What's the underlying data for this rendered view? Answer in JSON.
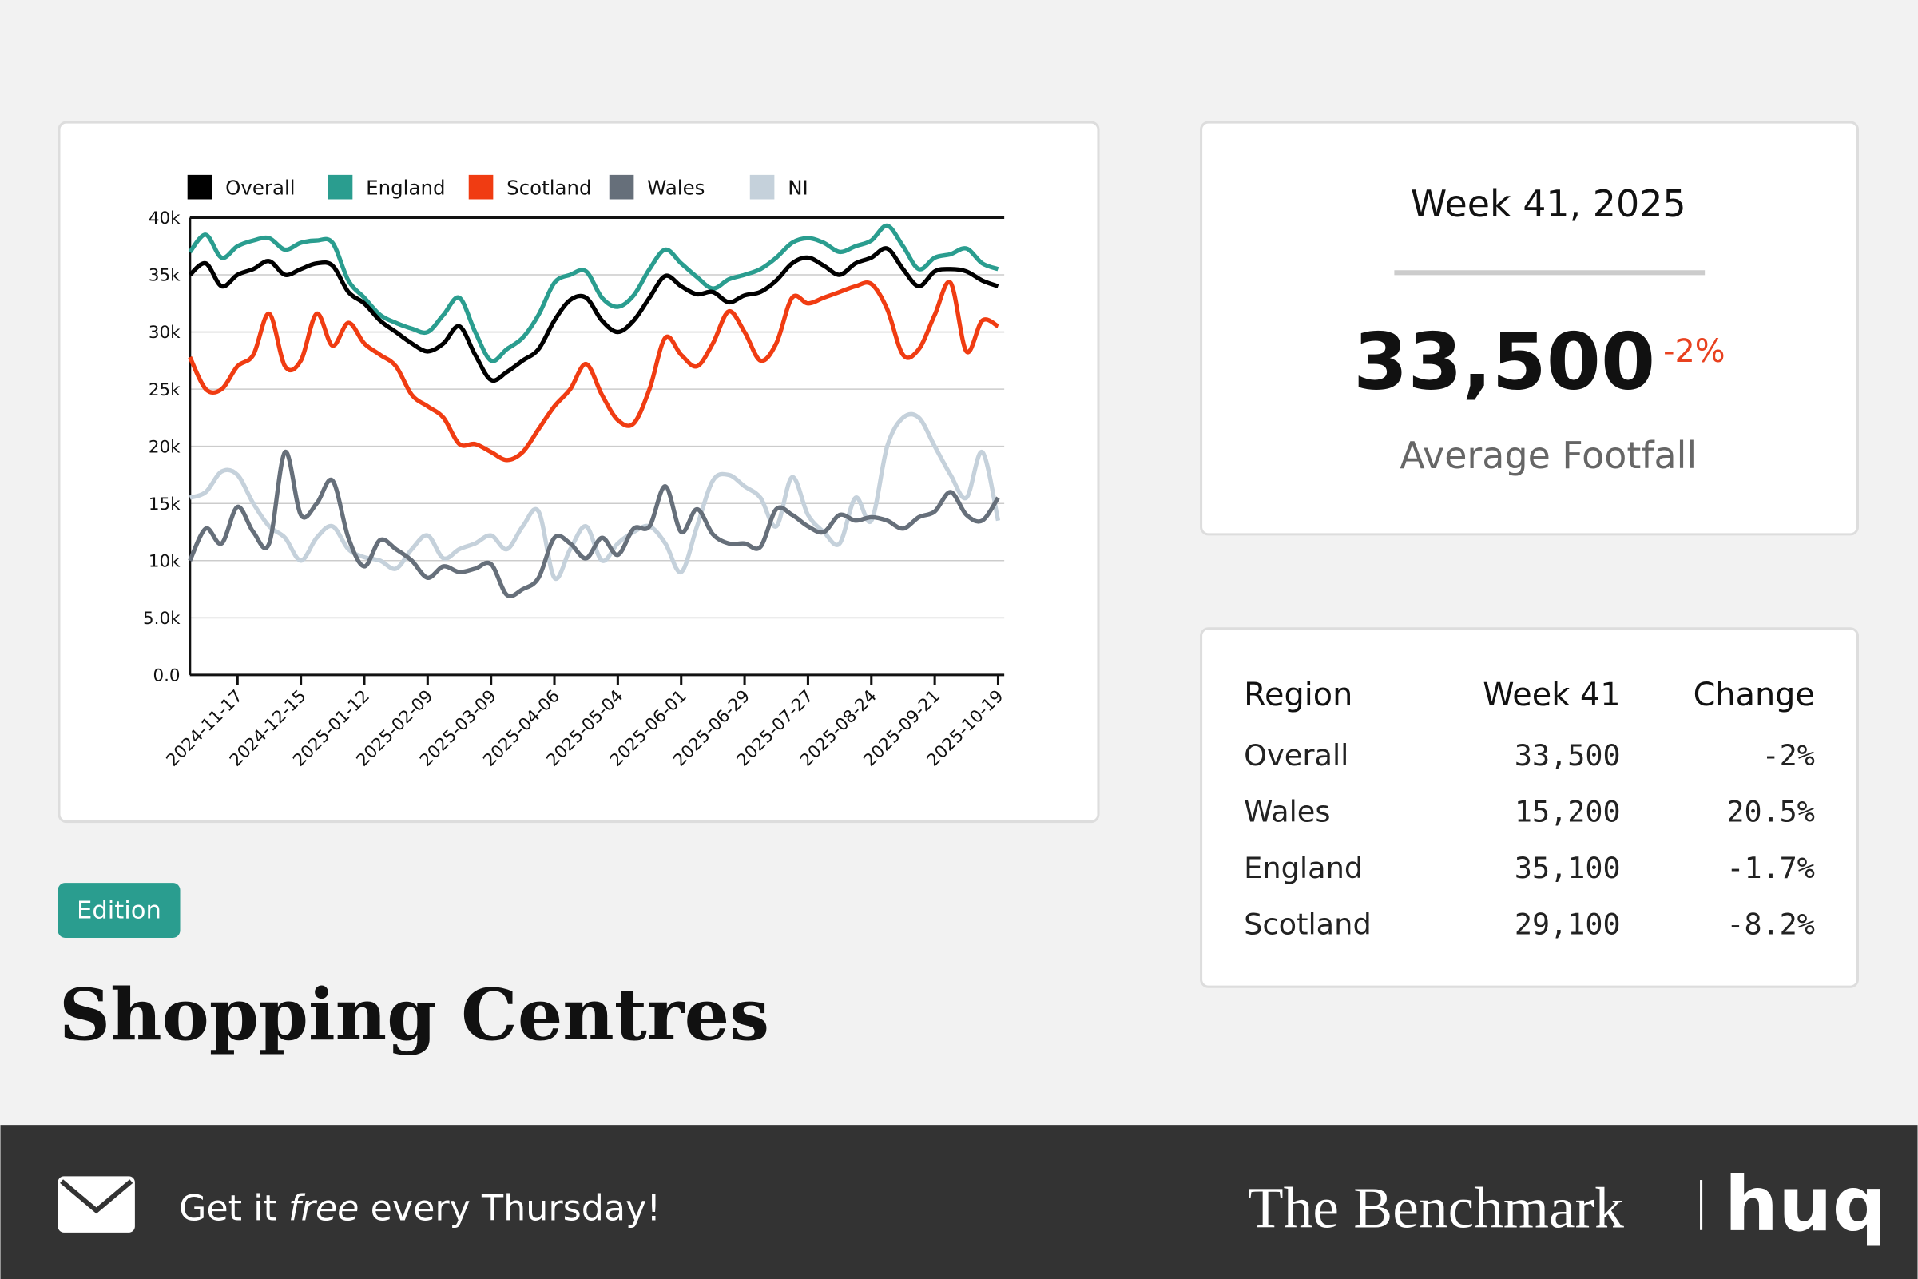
{
  "chart_data": {
    "type": "line",
    "x": [
      "2024-10-27",
      "2024-11-03",
      "2024-11-10",
      "2024-11-17",
      "2024-11-24",
      "2024-12-01",
      "2024-12-08",
      "2024-12-15",
      "2024-12-22",
      "2024-12-29",
      "2025-01-05",
      "2025-01-12",
      "2025-01-19",
      "2025-01-26",
      "2025-02-02",
      "2025-02-09",
      "2025-02-16",
      "2025-02-23",
      "2025-03-02",
      "2025-03-09",
      "2025-03-16",
      "2025-03-23",
      "2025-03-30",
      "2025-04-06",
      "2025-04-13",
      "2025-04-20",
      "2025-04-27",
      "2025-05-04",
      "2025-05-11",
      "2025-05-18",
      "2025-05-25",
      "2025-06-01",
      "2025-06-08",
      "2025-06-15",
      "2025-06-22",
      "2025-06-29",
      "2025-07-06",
      "2025-07-13",
      "2025-07-20",
      "2025-07-27",
      "2025-08-03",
      "2025-08-10",
      "2025-08-17",
      "2025-08-24",
      "2025-08-31",
      "2025-09-07",
      "2025-09-14",
      "2025-09-21",
      "2025-09-28",
      "2025-10-05",
      "2025-10-12",
      "2025-10-19"
    ],
    "xlim": [
      "2024-10-27",
      "2025-10-19"
    ],
    "xticks": [
      "2024-11-17",
      "2024-12-15",
      "2025-01-12",
      "2025-02-09",
      "2025-03-09",
      "2025-04-06",
      "2025-05-04",
      "2025-06-01",
      "2025-06-29",
      "2025-07-27",
      "2025-08-24",
      "2025-09-21",
      "2025-10-19"
    ],
    "ylim": [
      0,
      40000
    ],
    "yticks": [
      {
        "value": 0,
        "label": "0.0"
      },
      {
        "value": 5000,
        "label": "5.0k"
      },
      {
        "value": 10000,
        "label": "10k"
      },
      {
        "value": 15000,
        "label": "15k"
      },
      {
        "value": 20000,
        "label": "20k"
      },
      {
        "value": 25000,
        "label": "25k"
      },
      {
        "value": 30000,
        "label": "30k"
      },
      {
        "value": 35000,
        "label": "35k"
      },
      {
        "value": 40000,
        "label": "40k"
      }
    ],
    "grid": true,
    "legend": "top",
    "series": [
      {
        "name": "Overall",
        "color": "#000000",
        "values": [
          35000,
          36000,
          34000,
          35000,
          35500,
          36200,
          35000,
          35500,
          36000,
          35800,
          33500,
          32500,
          31000,
          30000,
          29000,
          28300,
          29000,
          30500,
          28000,
          25800,
          26500,
          27500,
          28500,
          31000,
          32800,
          33000,
          31000,
          30000,
          31000,
          33000,
          34900,
          34000,
          33300,
          33500,
          32600,
          33200,
          33500,
          34500,
          36000,
          36500,
          35800,
          35000,
          36000,
          36500,
          37300,
          35500,
          34000,
          35300,
          35500,
          35300,
          34500,
          34000
        ]
      },
      {
        "name": "England",
        "color": "#2a9d8f",
        "values": [
          37000,
          38500,
          36500,
          37500,
          38000,
          38200,
          37200,
          37800,
          38000,
          37800,
          34500,
          33000,
          31500,
          30800,
          30300,
          30000,
          31500,
          33000,
          30000,
          27500,
          28500,
          29500,
          31500,
          34300,
          35000,
          35300,
          33000,
          32200,
          33200,
          35500,
          37200,
          36000,
          34800,
          33800,
          34600,
          35000,
          35500,
          36500,
          37800,
          38200,
          37800,
          37000,
          37500,
          38000,
          39300,
          37500,
          35500,
          36500,
          36800,
          37300,
          36000,
          35500
        ]
      },
      {
        "name": "Scotland",
        "color": "#f03c12",
        "values": [
          27800,
          25000,
          25000,
          27000,
          28000,
          31600,
          27000,
          27500,
          31600,
          28800,
          30800,
          29000,
          28000,
          27000,
          24500,
          23500,
          22500,
          20200,
          20200,
          19500,
          18800,
          19500,
          21500,
          23500,
          25000,
          27200,
          24500,
          22300,
          22000,
          25000,
          29500,
          28000,
          27000,
          29000,
          31800,
          30000,
          27500,
          29000,
          33000,
          32500,
          33000,
          33500,
          34000,
          34200,
          32000,
          28000,
          28500,
          31500,
          34300,
          28300,
          31000,
          30500
        ]
      },
      {
        "name": "Wales",
        "color": "#666f7a",
        "values": [
          10000,
          12800,
          11500,
          14700,
          12500,
          11500,
          19500,
          14000,
          15000,
          17000,
          12000,
          9500,
          11800,
          11000,
          10000,
          8500,
          9500,
          9000,
          9300,
          9700,
          7000,
          7500,
          8500,
          12000,
          11500,
          10200,
          12000,
          10500,
          12800,
          13000,
          16500,
          12500,
          14500,
          12300,
          11500,
          11500,
          11200,
          14500,
          14000,
          13000,
          12500,
          14000,
          13500,
          13800,
          13500,
          12800,
          13800,
          14300,
          16000,
          14000,
          13500,
          15500
        ]
      },
      {
        "name": "NI",
        "color": "#c5d1db",
        "values": [
          15500,
          16000,
          17800,
          17500,
          15000,
          13000,
          12000,
          10000,
          12000,
          13000,
          11000,
          10300,
          10000,
          9300,
          11000,
          12200,
          10200,
          11000,
          11500,
          12200,
          11000,
          13000,
          14300,
          8500,
          11000,
          13000,
          10000,
          11500,
          12500,
          13000,
          11500,
          9000,
          13000,
          17000,
          17500,
          16500,
          15500,
          13000,
          17300,
          14000,
          12500,
          11500,
          15500,
          13500,
          20000,
          22500,
          22500,
          20000,
          17500,
          15500,
          19500,
          13500
        ]
      }
    ]
  },
  "summary": {
    "title": "Week 41, 2025",
    "value": "33,500",
    "change": "-2%",
    "label": "Average Footfall"
  },
  "table": {
    "headers": [
      "Region",
      "Week 41",
      "Change"
    ],
    "rows": [
      [
        "Overall",
        "33,500",
        "-2%"
      ],
      [
        "Wales",
        "15,200",
        "20.5%"
      ],
      [
        "England",
        "35,100",
        "-1.7%"
      ],
      [
        "Scotland",
        "29,100",
        "-8.2%"
      ]
    ]
  },
  "badge": "Edition",
  "heading": "Shopping Centres",
  "footer": {
    "cta": [
      "Get it ",
      "free",
      " every Thursday!"
    ],
    "brand": "The Benchmark",
    "logo": "huq"
  }
}
